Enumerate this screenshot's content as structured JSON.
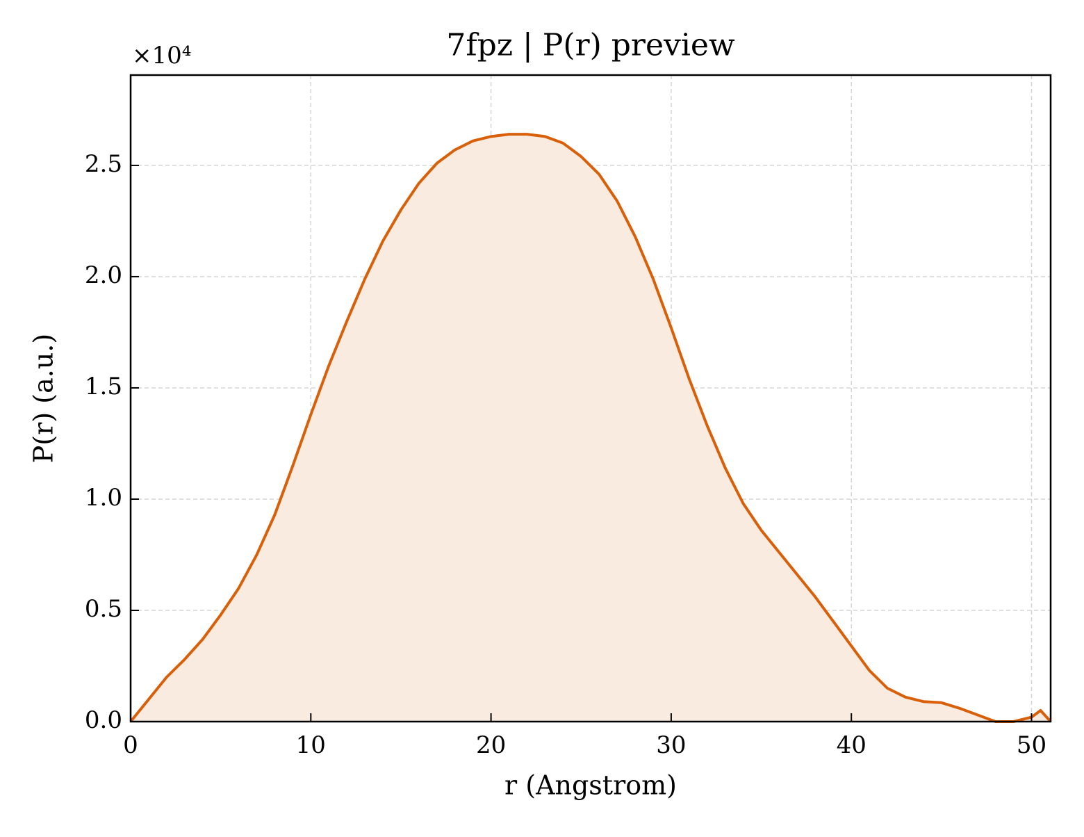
{
  "chart_data": {
    "type": "area",
    "title": "7fpz | P(r) preview",
    "x_label": "r (Angstrom)",
    "y_label": "P(r) (a.u.)",
    "y_offset_label": "×10⁴",
    "x": [
      0,
      1,
      2,
      3,
      4,
      5,
      6,
      7,
      8,
      9,
      10,
      11,
      12,
      13,
      14,
      15,
      16,
      17,
      18,
      19,
      20,
      21,
      22,
      23,
      24,
      25,
      26,
      27,
      28,
      29,
      30,
      31,
      32,
      33,
      34,
      35,
      36,
      37,
      38,
      39,
      40,
      41,
      42,
      43,
      44,
      45,
      46,
      47,
      48,
      49,
      50,
      50.5,
      51.06
    ],
    "values": [
      0,
      1000,
      2000,
      2800,
      3700,
      4800,
      6000,
      7500,
      9300,
      11500,
      13800,
      16000,
      18000,
      19900,
      21600,
      23000,
      24200,
      25100,
      25700,
      26100,
      26300,
      26400,
      26400,
      26300,
      26000,
      25400,
      24600,
      23400,
      21800,
      19900,
      17700,
      15400,
      13300,
      11400,
      9800,
      8600,
      7600,
      6600,
      5600,
      4500,
      3400,
      2300,
      1500,
      1100,
      900,
      850,
      600,
      300,
      0,
      0,
      200,
      500,
      0
    ],
    "line_color": "#d9600a",
    "fill_color": "#f9ebe0",
    "xlim": [
      0,
      51.06
    ],
    "ylim": [
      0,
      29060
    ],
    "xticks": [
      0,
      10,
      20,
      30,
      40,
      50
    ],
    "yticks": [
      {
        "value": 0,
        "label": "0.0"
      },
      {
        "value": 5000,
        "label": "0.5"
      },
      {
        "value": 10000,
        "label": "1.0"
      },
      {
        "value": 15000,
        "label": "1.5"
      },
      {
        "value": 20000,
        "label": "2.0"
      },
      {
        "value": 25000,
        "label": "2.5"
      }
    ],
    "grid": true
  }
}
